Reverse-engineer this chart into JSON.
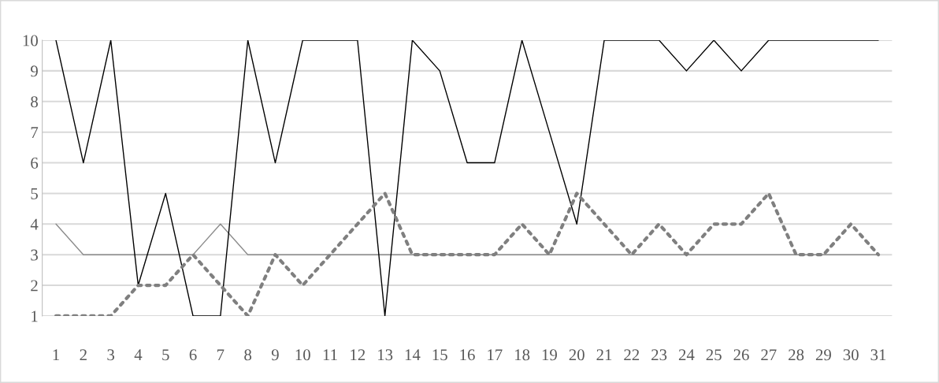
{
  "chart_data": {
    "type": "line",
    "categories": [
      "1",
      "2",
      "3",
      "4",
      "5",
      "6",
      "7",
      "8",
      "9",
      "10",
      "11",
      "12",
      "13",
      "14",
      "15",
      "16",
      "17",
      "18",
      "19",
      "20",
      "21",
      "22",
      "23",
      "24",
      "25",
      "26",
      "27",
      "28",
      "29",
      "30",
      "31"
    ],
    "series": [
      {
        "color": "#8c8c8c",
        "line_style": "solid",
        "values": [
          4,
          3,
          3,
          3,
          3,
          3,
          4,
          3,
          3,
          3,
          3,
          3,
          3,
          3,
          3,
          3,
          3,
          3,
          3,
          3,
          3,
          3,
          3,
          3,
          3,
          3,
          3,
          3,
          3,
          3,
          3
        ]
      },
      {
        "color": "#000000",
        "line_style": "solid",
        "values": [
          10,
          6,
          10,
          2,
          5,
          1,
          1,
          10,
          6,
          10,
          10,
          10,
          1,
          10,
          9,
          6,
          6,
          10,
          7,
          4,
          10,
          10,
          10,
          9,
          10,
          9,
          10,
          10,
          10,
          10,
          10
        ]
      },
      {
        "color": "#7f7f7f",
        "line_style": "dotted",
        "values": [
          1,
          1,
          1,
          2,
          2,
          3,
          2,
          1,
          3,
          2,
          3,
          4,
          5,
          3,
          3,
          3,
          3,
          4,
          3,
          5,
          4,
          3,
          4,
          3,
          4,
          4,
          5,
          3,
          3,
          4,
          3
        ]
      }
    ],
    "ylim": [
      1,
      10
    ],
    "yticks": [
      1,
      2,
      3,
      4,
      5,
      6,
      7,
      8,
      9,
      10
    ],
    "grid": "y",
    "legend": false
  }
}
